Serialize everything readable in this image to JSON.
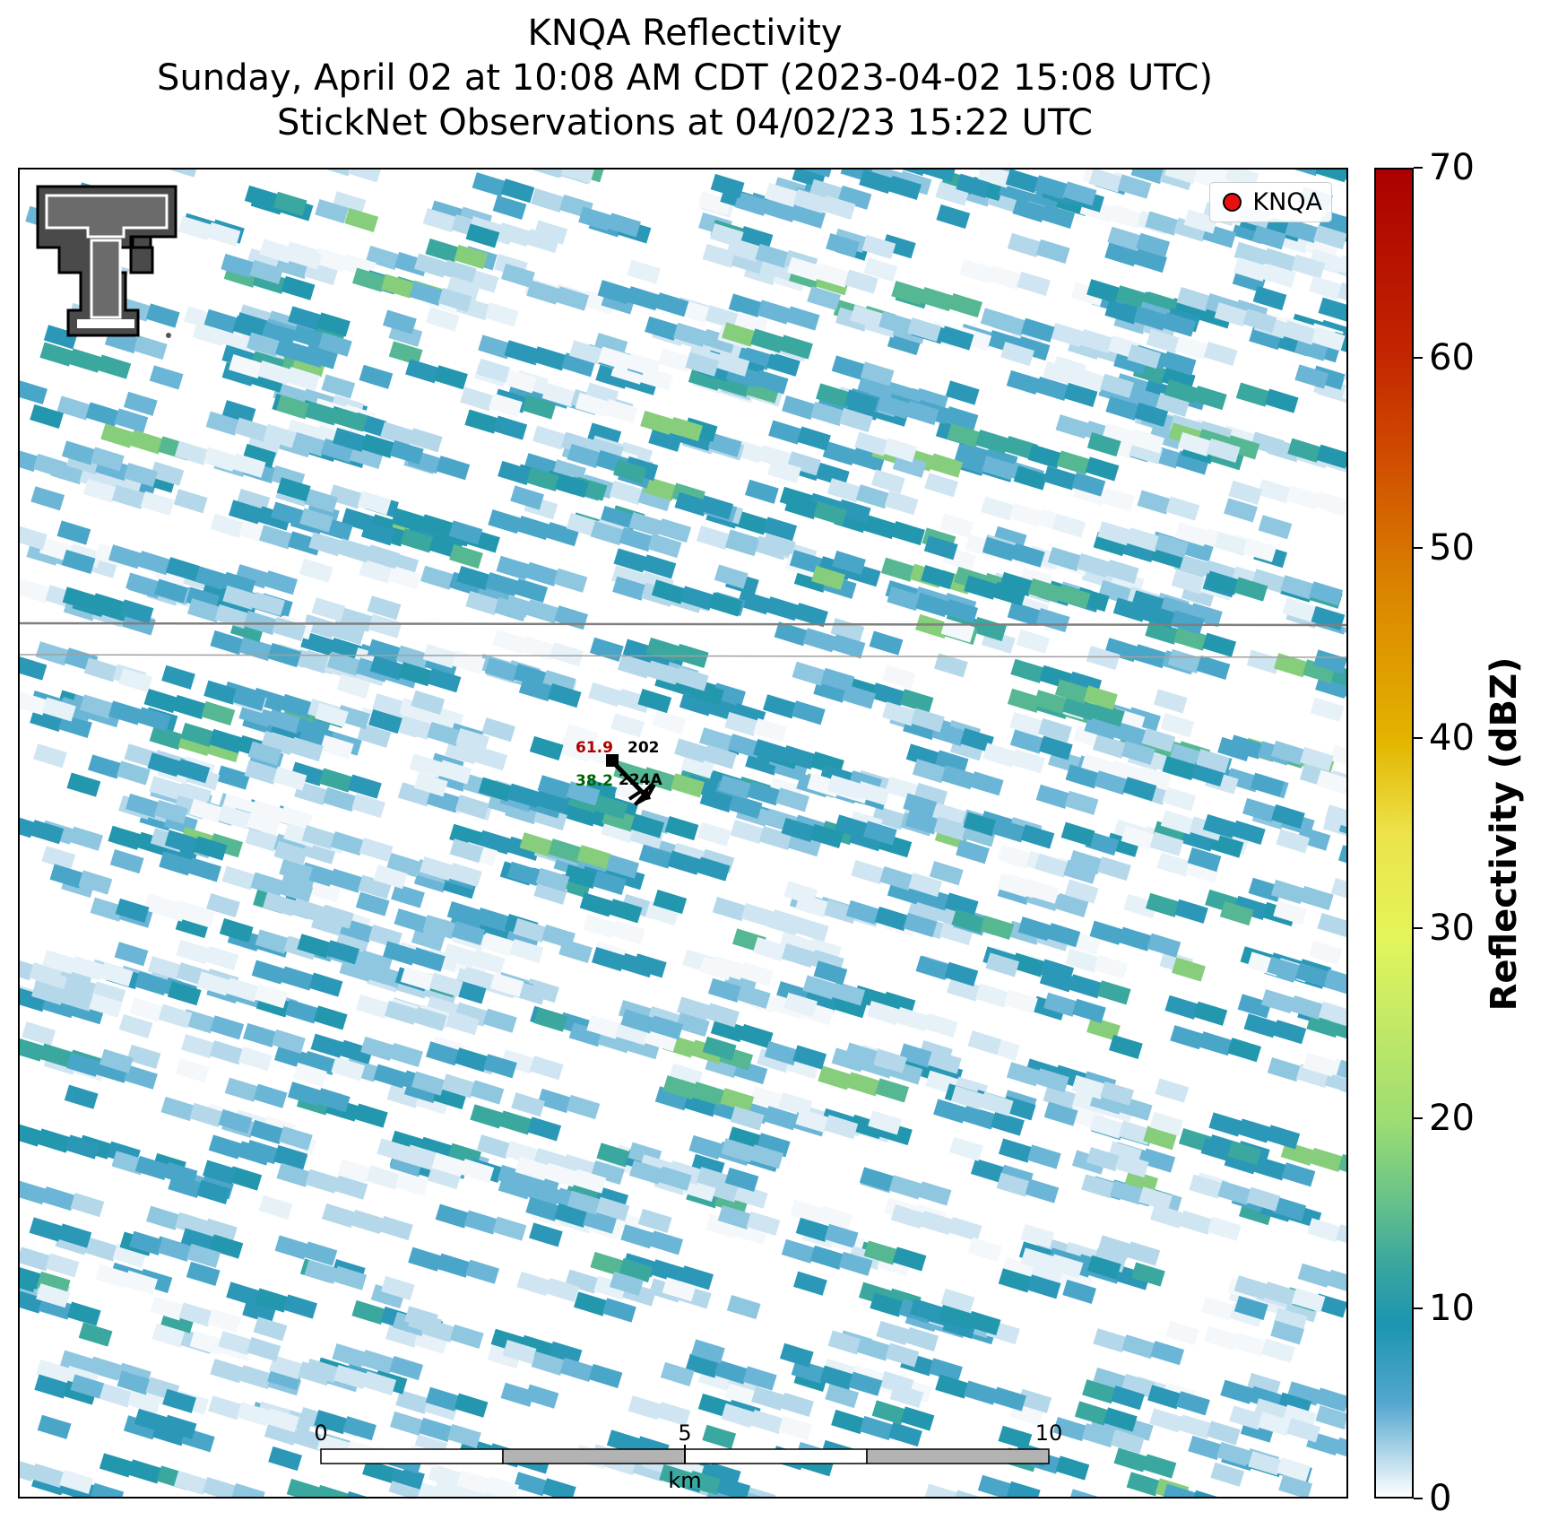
{
  "title": {
    "line1": "KNQA Reflectivity",
    "line2": "Sunday, April 02 at 10:08 AM CDT (2023-04-02 15:08 UTC)",
    "line3": "StickNet Observations at 04/02/23 15:22 UTC"
  },
  "legend": {
    "label": "KNQA",
    "marker_color": "#e8110f"
  },
  "logo": {
    "name": "texas-tech-double-t-logo"
  },
  "station_plot": {
    "temperature": "61.9",
    "dewpoint": "38.2",
    "station_ids": [
      "202",
      "224A"
    ],
    "temperature_color": "#b00000",
    "dewpoint_color": "#006400"
  },
  "scalebar": {
    "labels": [
      "0",
      "5",
      "10"
    ],
    "unit": "km",
    "segment_colors": [
      "#ffffff",
      "#b3b3b3",
      "#ffffff",
      "#b3b3b3"
    ]
  },
  "colorbar": {
    "label": "Reflectivity (dBZ)",
    "ticks": [
      "0",
      "10",
      "20",
      "30",
      "40",
      "50",
      "60",
      "70"
    ],
    "range": [
      0,
      70
    ]
  }
}
